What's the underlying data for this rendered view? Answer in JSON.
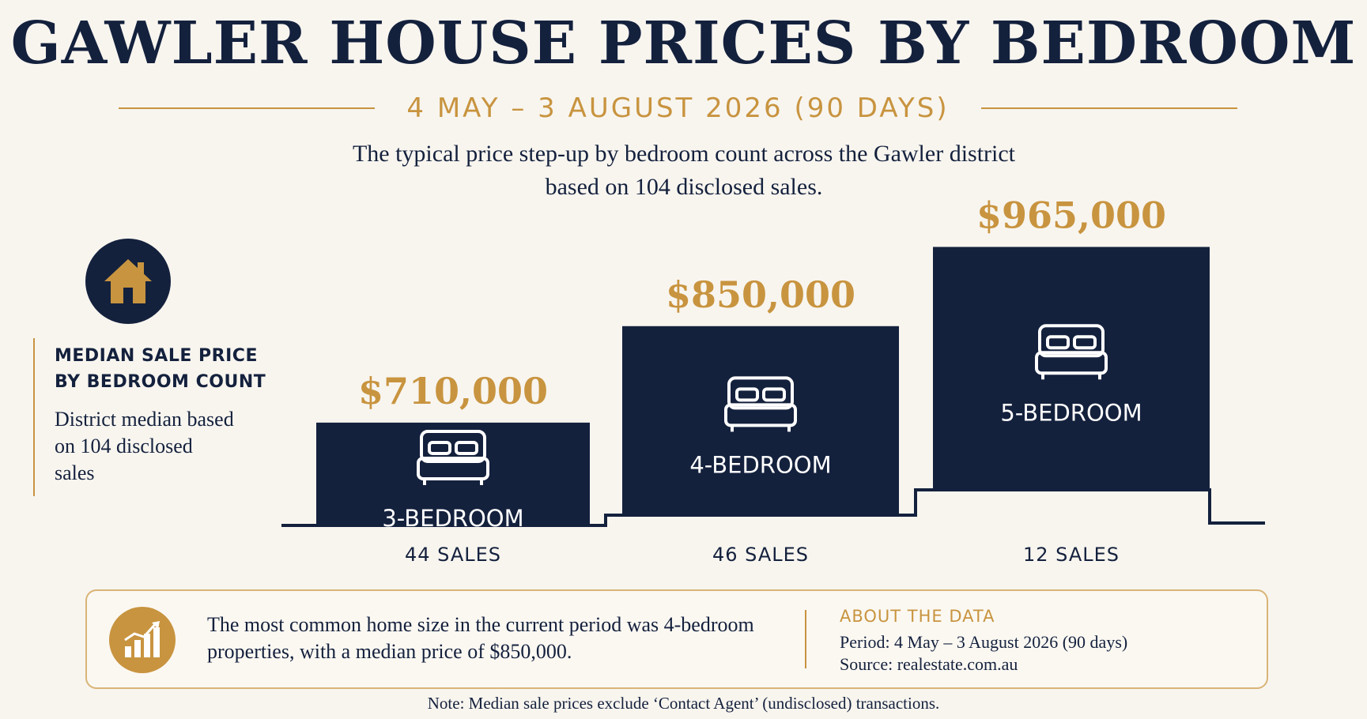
{
  "header": {
    "title": "GAWLER HOUSE PRICES BY BEDROOM",
    "subtitle": "4 MAY – 3 AUGUST 2026 (90 DAYS)",
    "description_line1": "The typical price step-up by bedroom count across the Gawler district",
    "description_line2": "based on 104 disclosed sales."
  },
  "side_panel": {
    "icon": "house-icon",
    "title_line1": "MEDIAN SALE PRICE",
    "title_line2": "BY BEDROOM COUNT",
    "text": "District median based on 104 disclosed sales"
  },
  "chart_data": {
    "type": "bar",
    "categories": [
      "3-BEDROOM",
      "4-BEDROOM",
      "5-BEDROOM"
    ],
    "values": [
      710000,
      850000,
      965000
    ],
    "value_labels": [
      "$710,000",
      "$850,000",
      "$965,000"
    ],
    "sales_labels": [
      "44 SALES",
      "46 SALES",
      "12 SALES"
    ],
    "bar_icon": "bed-icon",
    "xlabel": "",
    "ylabel": "",
    "grid": false,
    "legend": "none"
  },
  "summary": {
    "icon": "bar-chart-trend-icon",
    "text": "The most common home size in the current period was 4-bedroom properties, with a median price of $850,000."
  },
  "about": {
    "title": "ABOUT THE DATA",
    "period": "Period: 4 May – 3 August 2026 (90 days)",
    "source": "Source: realestate.com.au"
  },
  "note": "Note: Median sale prices exclude ‘Contact Agent’ (undisclosed) transactions.",
  "colors": {
    "navy": "#14213d",
    "gold": "#c8943f",
    "background": "#f8f5ef"
  }
}
